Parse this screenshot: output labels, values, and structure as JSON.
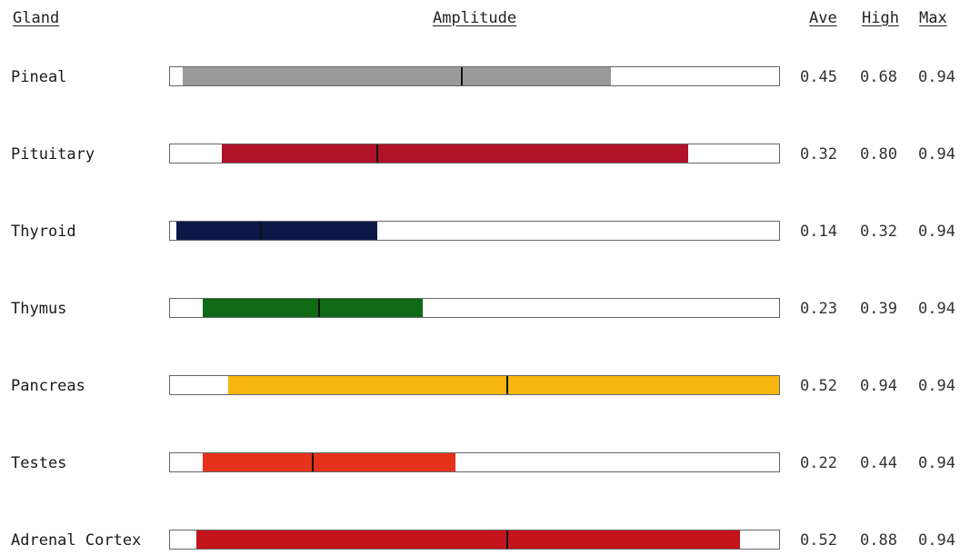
{
  "headers": {
    "gland": "Gland",
    "amplitude": "Amplitude",
    "ave": "Ave",
    "high": "High",
    "max": "Max"
  },
  "chart_data": {
    "type": "bar",
    "title": "",
    "xlabel": "Amplitude",
    "ylabel": "Gland",
    "xlim": [
      0,
      1
    ],
    "grid": false,
    "categories": [
      "Pineal",
      "Pituitary",
      "Thyroid",
      "Thymus",
      "Pancreas",
      "Testes",
      "Adrenal Cortex"
    ],
    "rows": [
      {
        "gland": "Pineal",
        "low": 0.02,
        "ave": 0.45,
        "high": 0.68,
        "max": 0.94,
        "ave_text": "0.45",
        "high_text": "0.68",
        "max_text": "0.94",
        "color": "#9a9a9a"
      },
      {
        "gland": "Pituitary",
        "low": 0.08,
        "ave": 0.32,
        "high": 0.8,
        "max": 0.94,
        "ave_text": "0.32",
        "high_text": "0.80",
        "max_text": "0.94",
        "color": "#b0122a"
      },
      {
        "gland": "Thyroid",
        "low": 0.01,
        "ave": 0.14,
        "high": 0.32,
        "max": 0.94,
        "ave_text": "0.14",
        "high_text": "0.32",
        "max_text": "0.94",
        "color": "#0b1847"
      },
      {
        "gland": "Thymus",
        "low": 0.05,
        "ave": 0.23,
        "high": 0.39,
        "max": 0.94,
        "ave_text": "0.23",
        "high_text": "0.39",
        "max_text": "0.94",
        "color": "#0e6a14"
      },
      {
        "gland": "Pancreas",
        "low": 0.09,
        "ave": 0.52,
        "high": 0.94,
        "max": 0.94,
        "ave_text": "0.52",
        "high_text": "0.94",
        "max_text": "0.94",
        "color": "#f7b70e"
      },
      {
        "gland": "Testes",
        "low": 0.05,
        "ave": 0.22,
        "high": 0.44,
        "max": 0.94,
        "ave_text": "0.22",
        "high_text": "0.44",
        "max_text": "0.94",
        "color": "#e7321b"
      },
      {
        "gland": "Adrenal Cortex",
        "low": 0.04,
        "ave": 0.52,
        "high": 0.88,
        "max": 0.94,
        "ave_text": "0.52",
        "high_text": "0.88",
        "max_text": "0.94",
        "color": "#c3141c"
      }
    ]
  }
}
